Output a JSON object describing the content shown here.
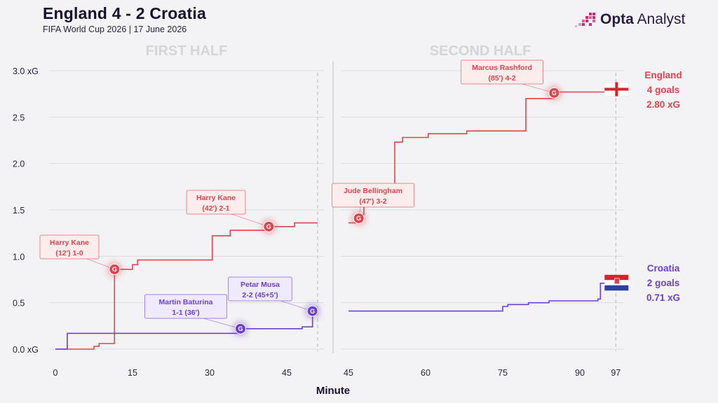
{
  "header": {
    "title": "England 4 - 2 Croatia",
    "subtitle": "FIFA World Cup 2026 | 17 June 2026",
    "brand_bold": "Opta",
    "brand_light": "Analyst"
  },
  "colors": {
    "england": "#e0434d",
    "croatia": "#6b3fd1",
    "grid": "#dddde2",
    "axis_text": "#2a2340",
    "half_label": "#d4d4d9",
    "brand_dots": "#d6237f"
  },
  "chart_data": {
    "type": "line",
    "xlabel": "Minute",
    "ylabel": "",
    "ylim": [
      0,
      3.0
    ],
    "yticks": [
      0,
      0.5,
      1.0,
      1.5,
      2.0,
      2.5,
      3.0
    ],
    "ytick_labels": [
      "0.0 xG",
      "0.5",
      "1.0",
      "1.5",
      "2.0",
      "2.5",
      "3.0 xG"
    ],
    "grid": true,
    "panels": [
      {
        "label": "FIRST HALF",
        "xlim": [
          0,
          51
        ],
        "xticks": [
          0,
          15,
          30,
          45
        ],
        "end_marker": 51
      },
      {
        "label": "SECOND HALF",
        "xlim": [
          45,
          97
        ],
        "xticks": [
          45,
          60,
          75,
          90,
          97
        ],
        "end_marker": 97
      }
    ],
    "series": [
      {
        "name": "England",
        "color": "#e0434d",
        "end_goals": "4 goals",
        "end_xg": "2.80 xG",
        "halves": [
          [
            [
              0,
              0
            ],
            [
              7.5,
              0
            ],
            [
              7.5,
              0.03
            ],
            [
              8.5,
              0.03
            ],
            [
              8.5,
              0.06
            ],
            [
              11.5,
              0.06
            ],
            [
              11.5,
              0.86
            ],
            [
              15,
              0.86
            ],
            [
              15,
              0.91
            ],
            [
              16,
              0.91
            ],
            [
              16,
              0.96
            ],
            [
              30.5,
              0.96
            ],
            [
              30.5,
              1.22
            ],
            [
              34,
              1.22
            ],
            [
              34,
              1.28
            ],
            [
              41.5,
              1.28
            ],
            [
              41.5,
              1.32
            ],
            [
              46.5,
              1.32
            ],
            [
              46.5,
              1.36
            ],
            [
              51,
              1.36
            ]
          ],
          [
            [
              45,
              1.36
            ],
            [
              47,
              1.36
            ],
            [
              47,
              1.45
            ],
            [
              48,
              1.45
            ],
            [
              48,
              1.66
            ],
            [
              54,
              1.66
            ],
            [
              54,
              2.23
            ],
            [
              55.5,
              2.23
            ],
            [
              55.5,
              2.28
            ],
            [
              60.5,
              2.28
            ],
            [
              60.5,
              2.32
            ],
            [
              68,
              2.32
            ],
            [
              68,
              2.35
            ],
            [
              79.5,
              2.35
            ],
            [
              79.5,
              2.7
            ],
            [
              85,
              2.7
            ],
            [
              85,
              2.77
            ],
            [
              95.5,
              2.77
            ],
            [
              95.5,
              2.8
            ],
            [
              97,
              2.8
            ]
          ]
        ],
        "goals": [
          {
            "half": 0,
            "minute": 11.5,
            "xg": 0.86,
            "player": "Harry Kane",
            "detail": "(12') 1-0"
          },
          {
            "half": 0,
            "minute": 41.5,
            "xg": 1.32,
            "player": "Harry Kane",
            "detail": "(42') 2-1"
          },
          {
            "half": 1,
            "minute": 47,
            "xg": 1.41,
            "player": "Jude Bellingham",
            "detail": "(47') 3-2"
          },
          {
            "half": 1,
            "minute": 85,
            "xg": 2.76,
            "player": "Marcus Rashford",
            "detail": "(85') 4-2"
          }
        ]
      },
      {
        "name": "Croatia",
        "color": "#6b3fd1",
        "end_goals": "2 goals",
        "end_xg": "0.71 xG",
        "halves": [
          [
            [
              0,
              0
            ],
            [
              2.3,
              0
            ],
            [
              2.3,
              0.17
            ],
            [
              36,
              0.17
            ],
            [
              36,
              0.22
            ],
            [
              48,
              0.22
            ],
            [
              48,
              0.24
            ],
            [
              50,
              0.24
            ],
            [
              50,
              0.41
            ],
            [
              51,
              0.41
            ]
          ],
          [
            [
              45,
              0.41
            ],
            [
              75,
              0.41
            ],
            [
              75,
              0.46
            ],
            [
              76,
              0.46
            ],
            [
              76,
              0.48
            ],
            [
              80,
              0.48
            ],
            [
              80,
              0.5
            ],
            [
              84,
              0.5
            ],
            [
              84,
              0.52
            ],
            [
              93.5,
              0.52
            ],
            [
              93.5,
              0.54
            ],
            [
              94,
              0.54
            ],
            [
              94,
              0.71
            ],
            [
              97,
              0.71
            ]
          ]
        ],
        "goals": [
          {
            "half": 0,
            "minute": 36,
            "xg": 0.22,
            "player": "Martin Baturina",
            "detail": "1-1 (36')"
          },
          {
            "half": 0,
            "minute": 50,
            "xg": 0.41,
            "player": "Petar Musa",
            "detail": "2-2 (45+5')"
          }
        ]
      }
    ],
    "goal_marker_label": "G"
  }
}
